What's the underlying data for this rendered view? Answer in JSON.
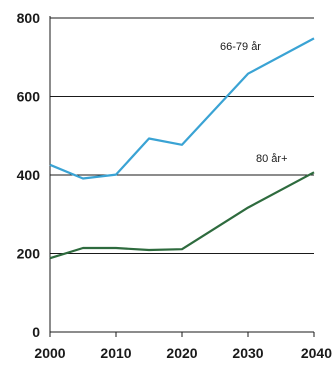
{
  "chart_data": {
    "type": "line",
    "x": [
      2000,
      2005,
      2010,
      2015,
      2020,
      2030,
      2040
    ],
    "series": [
      {
        "name": "66-79 år",
        "color": "#3aa3d4",
        "values": [
          426,
          391,
          401,
          493,
          477,
          658,
          748
        ]
      },
      {
        "name": "80 år+",
        "color": "#2e6b3e",
        "values": [
          188,
          214,
          214,
          209,
          211,
          317,
          407
        ]
      }
    ],
    "x_ticks": [
      "2000",
      "2010",
      "2020",
      "2030",
      "2040"
    ],
    "y_ticks": [
      "0",
      "200",
      "400",
      "600",
      "800"
    ],
    "xlim": [
      2000,
      2040
    ],
    "ylim": [
      0,
      800
    ],
    "grid": "horizontal",
    "title": "",
    "xlabel": "",
    "ylabel": ""
  }
}
